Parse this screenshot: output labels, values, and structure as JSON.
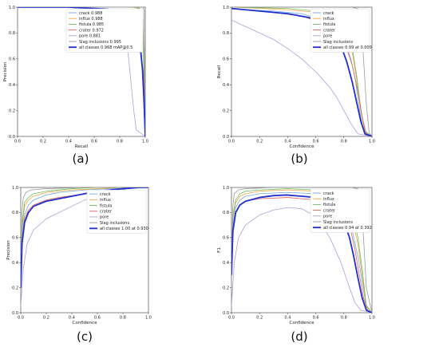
{
  "colors": {
    "crack": "#6fa8dc",
    "influx": "#f4a742",
    "fistula": "#6cbf5c",
    "crater": "#e0605a",
    "pore": "#b39ddb",
    "slag": "#9b9b9b",
    "all": "#1f2fd0"
  },
  "chart_data": [
    {
      "type": "line",
      "panel": "a",
      "caption": "(a)",
      "xlabel": "Recall",
      "ylabel": "Precision",
      "xlim": [
        0,
        1
      ],
      "ylim": [
        0,
        1
      ],
      "xticks": [
        "0.0",
        "0.2",
        "0.4",
        "0.6",
        "0.8",
        "1.0"
      ],
      "yticks": [
        "0.0",
        "0.2",
        "0.4",
        "0.6",
        "0.8",
        "1.0"
      ],
      "legend_position": "top-right",
      "series": [
        {
          "name": "crack 0.988",
          "key": "crack",
          "x": [
            0,
            0.5,
            0.8,
            0.9,
            0.95,
            0.97,
            0.98,
            0.99,
            1.0
          ],
          "y": [
            1,
            1,
            1,
            1,
            0.99,
            0.97,
            0.9,
            0.6,
            0.0
          ]
        },
        {
          "name": "influx 0.988",
          "key": "influx",
          "x": [
            0,
            0.5,
            0.8,
            0.9,
            0.95,
            0.97,
            0.98,
            0.99,
            1.0
          ],
          "y": [
            1,
            1,
            1,
            1,
            0.99,
            0.98,
            0.92,
            0.5,
            0.0
          ]
        },
        {
          "name": "fistula 0.985",
          "key": "fistula",
          "x": [
            0,
            0.6,
            0.85,
            0.93,
            0.96,
            0.97,
            0.98,
            0.99,
            1.0
          ],
          "y": [
            1,
            1,
            1,
            1,
            0.99,
            0.97,
            0.9,
            0.4,
            0.0
          ]
        },
        {
          "name": "crater 0.972",
          "key": "crater",
          "x": [
            0,
            0.45,
            0.46,
            0.7,
            0.85,
            0.9,
            0.93,
            0.96,
            0.98,
            1.0
          ],
          "y": [
            1,
            1,
            0.97,
            0.97,
            0.96,
            0.95,
            0.93,
            0.88,
            0.4,
            0.0
          ]
        },
        {
          "name": "pore 0.881",
          "key": "pore",
          "x": [
            0,
            0.5,
            0.7,
            0.78,
            0.82,
            0.85,
            0.87,
            0.89,
            0.91,
            0.93,
            1.0
          ],
          "y": [
            1,
            1,
            0.98,
            0.95,
            0.88,
            0.75,
            0.6,
            0.4,
            0.2,
            0.05,
            0.0
          ]
        },
        {
          "name": "Slag inclusions 0.995",
          "key": "slag",
          "x": [
            0,
            0.9,
            0.96,
            0.98,
            0.99,
            1.0
          ],
          "y": [
            1,
            1,
            1,
            1,
            0.98,
            0.0
          ]
        },
        {
          "name": "all classes 0.968 mAP@0.5",
          "key": "all",
          "bold": true,
          "x": [
            0,
            0.4,
            0.6,
            0.7,
            0.8,
            0.85,
            0.88,
            0.91,
            0.94,
            0.96,
            0.98,
            0.99,
            1.0
          ],
          "y": [
            1,
            1,
            0.99,
            0.985,
            0.97,
            0.96,
            0.94,
            0.9,
            0.82,
            0.7,
            0.5,
            0.3,
            0.0
          ]
        }
      ]
    },
    {
      "type": "line",
      "panel": "b",
      "caption": "(b)",
      "xlabel": "Confidence",
      "ylabel": "Recall",
      "xlim": [
        0,
        1
      ],
      "ylim": [
        0,
        1
      ],
      "xticks": [
        "0.0",
        "0.2",
        "0.4",
        "0.6",
        "0.8",
        "1.0"
      ],
      "yticks": [
        "0.0",
        "0.2",
        "0.4",
        "0.6",
        "0.8",
        "1.0"
      ],
      "legend_position": "top-right",
      "series": [
        {
          "name": "crack",
          "key": "crack",
          "x": [
            0,
            0.1,
            0.3,
            0.5,
            0.65,
            0.75,
            0.8,
            0.85,
            0.88,
            0.9,
            0.92,
            0.94,
            1.0
          ],
          "y": [
            0.99,
            0.98,
            0.97,
            0.95,
            0.9,
            0.83,
            0.75,
            0.6,
            0.45,
            0.3,
            0.15,
            0.05,
            0.0
          ]
        },
        {
          "name": "influx",
          "key": "influx",
          "x": [
            0,
            0.2,
            0.4,
            0.6,
            0.75,
            0.82,
            0.86,
            0.89,
            0.92,
            0.95,
            1.0
          ],
          "y": [
            1,
            0.99,
            0.98,
            0.96,
            0.9,
            0.8,
            0.65,
            0.45,
            0.2,
            0.03,
            0.0
          ]
        },
        {
          "name": "fistula",
          "key": "fistula",
          "x": [
            0,
            0.2,
            0.4,
            0.6,
            0.75,
            0.82,
            0.86,
            0.89,
            0.92,
            0.95,
            1.0
          ],
          "y": [
            1,
            0.995,
            0.99,
            0.97,
            0.92,
            0.82,
            0.68,
            0.48,
            0.22,
            0.04,
            0.0
          ]
        },
        {
          "name": "crater",
          "key": "crater",
          "x": [
            0,
            0.1,
            0.3,
            0.5,
            0.65,
            0.75,
            0.82,
            0.86,
            0.9,
            0.93,
            0.96,
            1.0
          ],
          "y": [
            0.99,
            0.98,
            0.96,
            0.93,
            0.88,
            0.8,
            0.68,
            0.55,
            0.35,
            0.15,
            0.02,
            0.0
          ]
        },
        {
          "name": "pore",
          "key": "pore",
          "x": [
            0,
            0.1,
            0.2,
            0.3,
            0.4,
            0.5,
            0.6,
            0.7,
            0.75,
            0.8,
            0.85,
            0.9,
            1.0
          ],
          "y": [
            0.9,
            0.85,
            0.8,
            0.75,
            0.68,
            0.6,
            0.5,
            0.38,
            0.3,
            0.2,
            0.1,
            0.02,
            0.0
          ]
        },
        {
          "name": "Slag inclusions",
          "key": "slag",
          "x": [
            0,
            0.5,
            0.85,
            0.9,
            0.92,
            0.94,
            0.96,
            0.98,
            1.0
          ],
          "y": [
            1,
            1,
            1,
            0.99,
            0.9,
            0.6,
            0.25,
            0.03,
            0.0
          ]
        },
        {
          "name": "all classes 0.99 at 0.000",
          "key": "all",
          "bold": true,
          "x": [
            0,
            0.2,
            0.4,
            0.55,
            0.65,
            0.72,
            0.78,
            0.82,
            0.86,
            0.89,
            0.92,
            0.95,
            1.0
          ],
          "y": [
            0.99,
            0.97,
            0.95,
            0.92,
            0.87,
            0.8,
            0.7,
            0.58,
            0.42,
            0.27,
            0.12,
            0.02,
            0.0
          ]
        }
      ]
    },
    {
      "type": "line",
      "panel": "c",
      "caption": "(c)",
      "xlabel": "Confidence",
      "ylabel": "Precision",
      "xlim": [
        0,
        1
      ],
      "ylim": [
        0,
        1
      ],
      "xticks": [
        "0.0",
        "0.2",
        "0.4",
        "0.6",
        "0.8",
        "1.0"
      ],
      "yticks": [
        "0.0",
        "0.2",
        "0.4",
        "0.6",
        "0.8",
        "1.0"
      ],
      "legend_position": "right",
      "series": [
        {
          "name": "crack",
          "key": "crack",
          "x": [
            0,
            0.01,
            0.03,
            0.06,
            0.1,
            0.2,
            0.3,
            0.5,
            0.7,
            1.0
          ],
          "y": [
            0.2,
            0.6,
            0.78,
            0.86,
            0.9,
            0.94,
            0.96,
            0.98,
            0.99,
            1.0
          ]
        },
        {
          "name": "influx",
          "key": "influx",
          "x": [
            0,
            0.01,
            0.03,
            0.06,
            0.1,
            0.2,
            0.4,
            0.6,
            0.8,
            1.0
          ],
          "y": [
            0.2,
            0.65,
            0.85,
            0.9,
            0.93,
            0.96,
            0.98,
            0.99,
            1.0,
            1.0
          ]
        },
        {
          "name": "fistula",
          "key": "fistula",
          "x": [
            0,
            0.01,
            0.03,
            0.06,
            0.1,
            0.2,
            0.4,
            0.6,
            1.0
          ],
          "y": [
            0.2,
            0.7,
            0.88,
            0.92,
            0.95,
            0.97,
            0.99,
            1.0,
            1.0
          ]
        },
        {
          "name": "crater",
          "key": "crater",
          "x": [
            0,
            0.01,
            0.03,
            0.06,
            0.1,
            0.2,
            0.3,
            0.5,
            0.7,
            0.85,
            1.0
          ],
          "y": [
            0.2,
            0.55,
            0.75,
            0.82,
            0.86,
            0.9,
            0.92,
            0.95,
            0.98,
            1.0,
            1.0
          ]
        },
        {
          "name": "pore",
          "key": "pore",
          "x": [
            0,
            0.02,
            0.05,
            0.1,
            0.2,
            0.3,
            0.4,
            0.5,
            0.6,
            0.7,
            0.8,
            0.86,
            1.0
          ],
          "y": [
            0.05,
            0.35,
            0.55,
            0.66,
            0.75,
            0.8,
            0.85,
            0.9,
            0.93,
            0.96,
            0.98,
            1.0,
            1.0
          ]
        },
        {
          "name": "Slag inclusions",
          "key": "slag",
          "x": [
            0,
            0.01,
            0.02,
            0.04,
            0.08,
            0.2,
            0.5,
            1.0
          ],
          "y": [
            0.3,
            0.8,
            0.92,
            0.96,
            0.98,
            0.99,
            1.0,
            1.0
          ]
        },
        {
          "name": "all classes 1.00 at 0.930",
          "key": "all",
          "bold": true,
          "x": [
            0,
            0.01,
            0.03,
            0.06,
            0.1,
            0.2,
            0.3,
            0.4,
            0.5,
            0.6,
            0.7,
            0.8,
            0.93,
            1.0
          ],
          "y": [
            0.2,
            0.55,
            0.72,
            0.8,
            0.85,
            0.89,
            0.91,
            0.93,
            0.95,
            0.97,
            0.98,
            0.99,
            1.0,
            1.0
          ]
        }
      ]
    },
    {
      "type": "line",
      "panel": "d",
      "caption": "(d)",
      "xlabel": "Confidence",
      "ylabel": "F1",
      "xlim": [
        0,
        1
      ],
      "ylim": [
        0,
        1
      ],
      "xticks": [
        "0.0",
        "0.2",
        "0.4",
        "0.6",
        "0.8",
        "1.0"
      ],
      "yticks": [
        "0.0",
        "0.2",
        "0.4",
        "0.6",
        "0.8",
        "1.0"
      ],
      "legend_position": "top-right",
      "series": [
        {
          "name": "crack",
          "key": "crack",
          "x": [
            0,
            0.01,
            0.03,
            0.06,
            0.1,
            0.2,
            0.4,
            0.6,
            0.75,
            0.82,
            0.86,
            0.9,
            0.93,
            0.96,
            1.0
          ],
          "y": [
            0.3,
            0.7,
            0.84,
            0.9,
            0.93,
            0.95,
            0.96,
            0.95,
            0.9,
            0.8,
            0.65,
            0.45,
            0.25,
            0.05,
            0.0
          ]
        },
        {
          "name": "influx",
          "key": "influx",
          "x": [
            0,
            0.01,
            0.03,
            0.06,
            0.1,
            0.2,
            0.4,
            0.6,
            0.75,
            0.82,
            0.86,
            0.9,
            0.93,
            0.96,
            1.0
          ],
          "y": [
            0.3,
            0.75,
            0.88,
            0.93,
            0.95,
            0.97,
            0.98,
            0.97,
            0.94,
            0.88,
            0.75,
            0.55,
            0.3,
            0.05,
            0.0
          ]
        },
        {
          "name": "fistula",
          "key": "fistula",
          "x": [
            0,
            0.01,
            0.03,
            0.06,
            0.1,
            0.2,
            0.4,
            0.6,
            0.75,
            0.82,
            0.86,
            0.9,
            0.93,
            0.96,
            1.0
          ],
          "y": [
            0.3,
            0.78,
            0.9,
            0.95,
            0.97,
            0.98,
            0.99,
            0.98,
            0.95,
            0.9,
            0.8,
            0.6,
            0.35,
            0.06,
            0.0
          ]
        },
        {
          "name": "crater",
          "key": "crater",
          "x": [
            0,
            0.01,
            0.03,
            0.06,
            0.1,
            0.2,
            0.4,
            0.6,
            0.72,
            0.8,
            0.85,
            0.88,
            0.91,
            0.94,
            0.97,
            1.0
          ],
          "y": [
            0.3,
            0.65,
            0.8,
            0.86,
            0.89,
            0.91,
            0.92,
            0.9,
            0.86,
            0.78,
            0.65,
            0.5,
            0.3,
            0.12,
            0.02,
            0.0
          ]
        },
        {
          "name": "pore",
          "key": "pore",
          "x": [
            0,
            0.02,
            0.05,
            0.1,
            0.2,
            0.3,
            0.4,
            0.5,
            0.6,
            0.7,
            0.78,
            0.84,
            0.88,
            0.92,
            1.0
          ],
          "y": [
            0.05,
            0.4,
            0.6,
            0.7,
            0.78,
            0.82,
            0.84,
            0.83,
            0.77,
            0.6,
            0.4,
            0.2,
            0.08,
            0.02,
            0.0
          ]
        },
        {
          "name": "Slag inclusions",
          "key": "slag",
          "x": [
            0,
            0.01,
            0.02,
            0.05,
            0.1,
            0.3,
            0.6,
            0.85,
            0.9,
            0.92,
            0.94,
            0.96,
            1.0
          ],
          "y": [
            0.4,
            0.85,
            0.95,
            0.98,
            0.99,
            1.0,
            1.0,
            1.0,
            0.99,
            0.92,
            0.6,
            0.2,
            0.0
          ]
        },
        {
          "name": "all classes 0.94 at 0.392",
          "key": "all",
          "bold": true,
          "x": [
            0,
            0.01,
            0.03,
            0.06,
            0.1,
            0.2,
            0.3,
            0.392,
            0.5,
            0.6,
            0.7,
            0.76,
            0.8,
            0.84,
            0.87,
            0.9,
            0.93,
            0.96,
            1.0
          ],
          "y": [
            0.3,
            0.65,
            0.8,
            0.86,
            0.89,
            0.92,
            0.935,
            0.94,
            0.93,
            0.92,
            0.88,
            0.82,
            0.73,
            0.6,
            0.45,
            0.28,
            0.12,
            0.02,
            0.0
          ]
        }
      ]
    }
  ]
}
